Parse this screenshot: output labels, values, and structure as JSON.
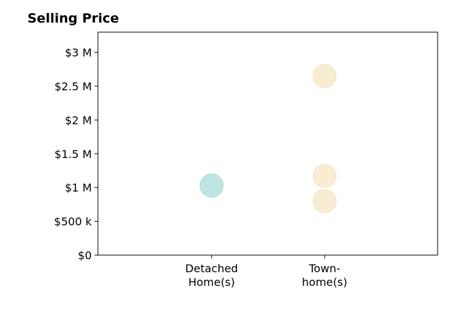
{
  "chart_data": {
    "type": "scatter",
    "title": "Selling Price",
    "xlabel": "",
    "ylabel": "",
    "categories": [
      [
        "Detached",
        "Home(s)"
      ],
      [
        "Town-",
        "home(s)"
      ]
    ],
    "ylim": [
      0,
      3300000
    ],
    "yticks": [
      0,
      500000,
      1000000,
      1500000,
      2000000,
      2500000,
      3000000
    ],
    "ytick_labels": [
      "$0",
      "$500 k",
      "$1 M",
      "$1.5 M",
      "$2 M",
      "$2.5 M",
      "$3 M"
    ],
    "grid": false,
    "points": [
      {
        "category": 0,
        "value": 1030000,
        "color": "#a8dcd9"
      },
      {
        "category": 1,
        "value": 2650000,
        "color": "#f5e6c4"
      },
      {
        "category": 1,
        "value": 1170000,
        "color": "#f5e6c4"
      },
      {
        "category": 1,
        "value": 800000,
        "color": "#f5e6c4"
      }
    ]
  }
}
